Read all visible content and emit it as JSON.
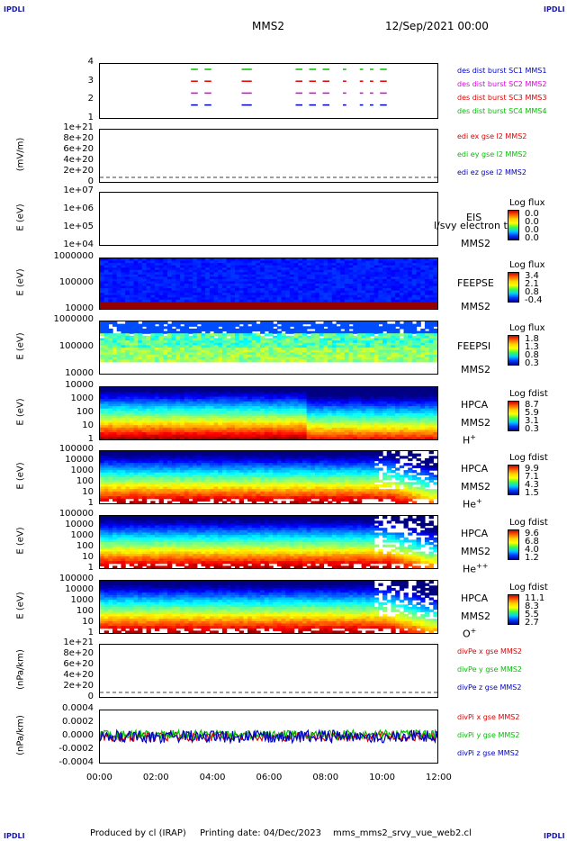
{
  "corners": {
    "tl": "IPDLI",
    "tr": "IPDLI",
    "bl": "IPDLI",
    "br": "IPDLI"
  },
  "header": {
    "spacecraft": "MMS2",
    "date": "12/Sep/2021 00:00"
  },
  "footer": {
    "produced": "Produced by cl (IRAP)",
    "printing": "Printing date: 04/Dec/2023",
    "file": "mms_mms2_srvy_vue_web2.cl"
  },
  "colors": {
    "red": "#e00000",
    "magenta": "#e000e0",
    "green": "#00c000",
    "blue": "#0000c0"
  },
  "chart_data": {
    "type": "heatmap",
    "x_ticks": [
      "00:00",
      "02:00",
      "04:00",
      "06:00",
      "08:00",
      "10:00",
      "12:00"
    ],
    "panels": [
      {
        "id": "burst",
        "type": "scatter",
        "yticks": [
          "4",
          "3",
          "2",
          "1"
        ],
        "labels": [
          {
            "text": "des dist burst SC1 MMS1",
            "color": "#0000c0"
          },
          {
            "text": "des dist burst SC2 MMS2",
            "color": "#e000e0"
          },
          {
            "text": "des dist burst SC3 MMS3",
            "color": "#e00000"
          },
          {
            "text": "des dist burst SC4 MMS4",
            "color": "#00c000"
          }
        ]
      },
      {
        "id": "edi",
        "type": "line",
        "ylabel": "(mV/m)",
        "yticks": [
          "1e+21",
          "8e+20",
          "6e+20",
          "4e+20",
          "2e+20",
          "0"
        ],
        "labels": [
          {
            "text": "edi ex gse l2 MMS2",
            "color": "#e00000"
          },
          {
            "text": "edi ey gse l2 MMS2",
            "color": "#00c000"
          },
          {
            "text": "edi ez gse l2 MMS2",
            "color": "#0000c0"
          }
        ]
      },
      {
        "id": "eis",
        "type": "heatmap",
        "ylabel": "E (eV)",
        "yticks": [
          "1e+07",
          "1e+06",
          "1e+05",
          "1e+04"
        ],
        "inst": "EIS",
        "sc": "MMS2",
        "extra": "l/svy electron tof",
        "cbtitle": "Log flux",
        "cbvals": [
          "0.0",
          "0.0",
          "0.0",
          "0.0"
        ]
      },
      {
        "id": "feepse",
        "type": "heatmap",
        "ylabel": "E (eV)",
        "yticks": [
          "1000000",
          "100000",
          "10000"
        ],
        "inst": "FEEPSE",
        "sc": "MMS2",
        "cbtitle": "Log flux",
        "cbvals": [
          "3.4",
          "2.1",
          "0.8",
          "-0.4"
        ]
      },
      {
        "id": "feepsi",
        "type": "heatmap",
        "ylabel": "E (eV)",
        "yticks": [
          "1000000",
          "100000",
          "10000"
        ],
        "inst": "FEEPSI",
        "sc": "MMS2",
        "cbtitle": "Log flux",
        "cbvals": [
          "1.8",
          "1.3",
          "0.8",
          "0.3"
        ]
      },
      {
        "id": "hpca_h",
        "type": "heatmap",
        "ylabel": "E (eV)",
        "yticks": [
          "10000",
          "1000",
          "100",
          "10",
          "1"
        ],
        "inst": "HPCA",
        "sc": "MMS2",
        "species": "H",
        "sup": "+",
        "cbtitle": "Log fdist",
        "cbvals": [
          "8.7",
          "5.9",
          "3.1",
          "0.3"
        ]
      },
      {
        "id": "hpca_he",
        "type": "heatmap",
        "ylabel": "E (eV)",
        "yticks": [
          "100000",
          "10000",
          "1000",
          "100",
          "10",
          "1"
        ],
        "inst": "HPCA",
        "sc": "MMS2",
        "species": "He",
        "sup": "+",
        "cbtitle": "Log fdist",
        "cbvals": [
          "9.9",
          "7.1",
          "4.3",
          "1.5"
        ]
      },
      {
        "id": "hpca_hepp",
        "type": "heatmap",
        "ylabel": "E (eV)",
        "yticks": [
          "100000",
          "10000",
          "1000",
          "100",
          "10",
          "1"
        ],
        "inst": "HPCA",
        "sc": "MMS2",
        "species": "He",
        "sup": "++",
        "cbtitle": "Log fdist",
        "cbvals": [
          "9.6",
          "6.8",
          "4.0",
          "1.2"
        ]
      },
      {
        "id": "hpca_o",
        "type": "heatmap",
        "ylabel": "E (eV)",
        "yticks": [
          "100000",
          "10000",
          "1000",
          "100",
          "10",
          "1"
        ],
        "inst": "HPCA",
        "sc": "MMS2",
        "species": "O",
        "sup": "+",
        "cbtitle": "Log fdist",
        "cbvals": [
          "11.1",
          "8.3",
          "5.5",
          "2.7"
        ]
      },
      {
        "id": "divpe",
        "type": "line",
        "ylabel": "(nPa/km)",
        "yticks": [
          "1e+21",
          "8e+20",
          "6e+20",
          "4e+20",
          "2e+20",
          "0"
        ],
        "labels": [
          {
            "text": "divPe x gse MMS2",
            "color": "#e00000"
          },
          {
            "text": "divPe y gse MMS2",
            "color": "#00c000"
          },
          {
            "text": "divPe z gse MMS2",
            "color": "#0000c0"
          }
        ]
      },
      {
        "id": "divpi",
        "type": "line",
        "ylabel": "(nPa/km)",
        "yticks": [
          "0.0004",
          "0.0002",
          "0.0000",
          "-0.0002",
          "-0.0004"
        ],
        "labels": [
          {
            "text": "divPi x gse MMS2",
            "color": "#e00000"
          },
          {
            "text": "divPi y gse MMS2",
            "color": "#00c000"
          },
          {
            "text": "divPi z gse MMS2",
            "color": "#0000c0"
          }
        ]
      }
    ]
  }
}
